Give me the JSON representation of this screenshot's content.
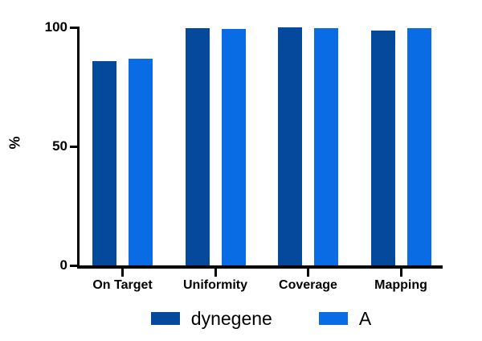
{
  "chart_data": {
    "type": "bar",
    "title": "",
    "ylabel": "%",
    "xlabel": "",
    "categories": [
      "On Target",
      "Uniformity",
      "Coverage",
      "Mapping"
    ],
    "series": [
      {
        "name": "dynegene",
        "color": "#05499c",
        "values": [
          85.8,
          99.7,
          100,
          98.8
        ]
      },
      {
        "name": "A",
        "color": "#0a6ce4",
        "values": [
          86.9,
          99.3,
          99.8,
          99.5
        ]
      }
    ],
    "ylim": [
      0,
      100
    ],
    "yticks": [
      0,
      50,
      100
    ],
    "grid": false,
    "legend_position": "bottom"
  },
  "colors": {
    "axis": "#000000",
    "background": "#ffffff"
  }
}
